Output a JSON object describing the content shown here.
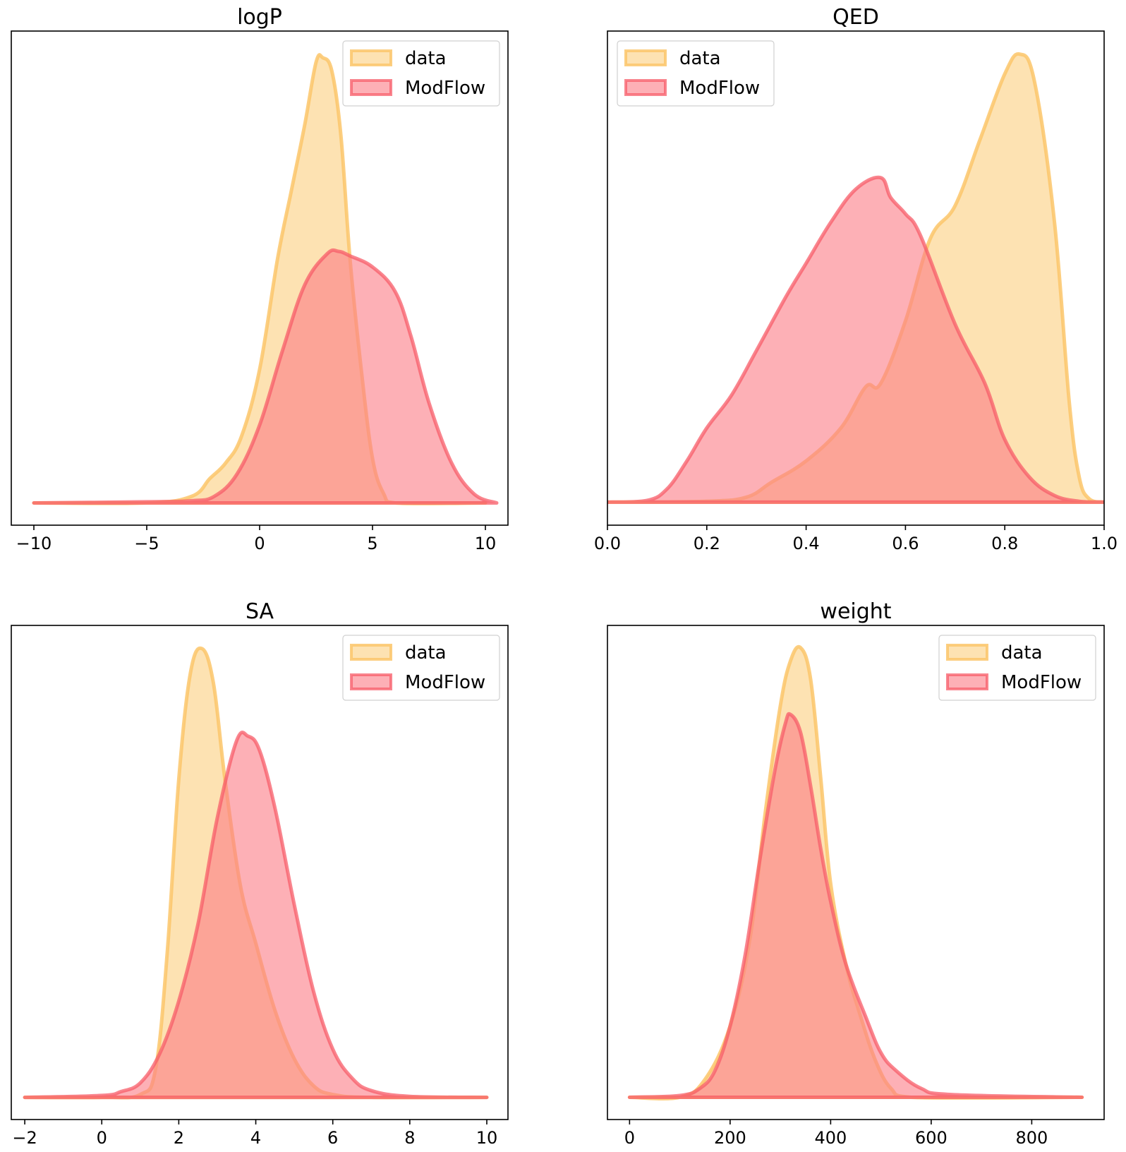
{
  "colors": {
    "data_fill": "#fccf7f",
    "data_line": "#fbc56a",
    "model_fill": "#fb7b85",
    "model_line": "#f75c68",
    "axes": "#000000",
    "legend_border": "#d0d0d0"
  },
  "chart_data": [
    {
      "type": "area",
      "title": "logP",
      "xlim": [
        -11,
        11
      ],
      "ylim": [
        -0.01,
        0.212
      ],
      "xticks": [
        -10,
        -5,
        0,
        5,
        10
      ],
      "xticklabels": [
        "−10",
        "−5",
        "0",
        "5",
        "10"
      ],
      "legend_position": "top-right",
      "legend_labels": [
        "data",
        "ModFlow"
      ],
      "series": [
        {
          "name": "data",
          "x": [
            -10,
            -5,
            -3,
            -2.2,
            -1.5,
            -0.8,
            0,
            0.8,
            1.4,
            2,
            2.5,
            2.8,
            3.2,
            3.6,
            4,
            4.5,
            5,
            5.5,
            6,
            10
          ],
          "y": [
            0,
            0,
            0.003,
            0.011,
            0.018,
            0.03,
            0.06,
            0.11,
            0.14,
            0.17,
            0.198,
            0.2,
            0.194,
            0.165,
            0.11,
            0.06,
            0.02,
            0.004,
            0,
            0
          ]
        },
        {
          "name": "ModFlow",
          "x": [
            -10,
            -5,
            -3,
            -2,
            -1,
            0,
            1,
            2,
            3,
            3.5,
            4,
            5,
            6,
            6.7,
            7.5,
            8.5,
            9.5,
            10.5
          ],
          "y": [
            0,
            0.0005,
            0.001,
            0.003,
            0.013,
            0.035,
            0.068,
            0.098,
            0.112,
            0.113,
            0.111,
            0.106,
            0.095,
            0.075,
            0.045,
            0.018,
            0.004,
            0
          ]
        }
      ]
    },
    {
      "type": "area",
      "title": "QED",
      "xlim": [
        0.0,
        1.0
      ],
      "ylim": [
        -0.14,
        2.86
      ],
      "xticks": [
        0.0,
        0.2,
        0.4,
        0.6,
        0.8,
        1.0
      ],
      "xticklabels": [
        "0.0",
        "0.2",
        "0.4",
        "0.6",
        "0.8",
        "1.0"
      ],
      "legend_position": "top-left",
      "legend_labels": [
        "data",
        "ModFlow"
      ],
      "series": [
        {
          "name": "data",
          "x": [
            0.0,
            0.2,
            0.28,
            0.33,
            0.4,
            0.47,
            0.52,
            0.55,
            0.6,
            0.65,
            0.7,
            0.75,
            0.8,
            0.83,
            0.86,
            0.9,
            0.93,
            0.95,
            0.97,
            1.0
          ],
          "y": [
            0,
            0.005,
            0.03,
            0.12,
            0.25,
            0.45,
            0.7,
            0.72,
            1.1,
            1.6,
            1.8,
            2.2,
            2.6,
            2.72,
            2.55,
            1.7,
            0.6,
            0.15,
            0.02,
            0
          ]
        },
        {
          "name": "ModFlow",
          "x": [
            0.0,
            0.08,
            0.12,
            0.16,
            0.2,
            0.25,
            0.3,
            0.36,
            0.4,
            0.45,
            0.5,
            0.55,
            0.57,
            0.6,
            0.63,
            0.7,
            0.76,
            0.8,
            0.85,
            0.9,
            0.95,
            1.0
          ],
          "y": [
            0,
            0.01,
            0.08,
            0.25,
            0.45,
            0.65,
            0.92,
            1.25,
            1.45,
            1.7,
            1.9,
            1.97,
            1.85,
            1.75,
            1.62,
            1.08,
            0.72,
            0.38,
            0.15,
            0.04,
            0.005,
            0
          ]
        }
      ]
    },
    {
      "type": "area",
      "title": "SA",
      "xlim": [
        -2.35,
        10.55
      ],
      "ylim": [
        -0.023,
        0.49
      ],
      "xticks": [
        -2,
        0,
        2,
        4,
        6,
        8,
        10
      ],
      "xticklabels": [
        "−2",
        "0",
        "2",
        "4",
        "6",
        "8",
        "10"
      ],
      "legend_position": "top-right",
      "legend_labels": [
        "data",
        "ModFlow"
      ],
      "series": [
        {
          "name": "data",
          "x": [
            -2,
            0,
            1,
            1.4,
            1.7,
            2,
            2.3,
            2.6,
            2.9,
            3.2,
            3.6,
            4,
            4.5,
            5,
            5.5,
            6,
            7,
            10
          ],
          "y": [
            0,
            0,
            0.003,
            0.03,
            0.15,
            0.33,
            0.44,
            0.466,
            0.43,
            0.33,
            0.22,
            0.16,
            0.09,
            0.04,
            0.012,
            0.003,
            0,
            0
          ]
        },
        {
          "name": "ModFlow",
          "x": [
            -2,
            0,
            0.5,
            1,
            1.5,
            2,
            2.5,
            3,
            3.5,
            3.8,
            4.1,
            4.5,
            5,
            5.5,
            6,
            6.5,
            7,
            8,
            10
          ],
          "y": [
            0,
            0.002,
            0.006,
            0.015,
            0.045,
            0.1,
            0.18,
            0.29,
            0.37,
            0.375,
            0.36,
            0.3,
            0.2,
            0.11,
            0.05,
            0.02,
            0.007,
            0.001,
            0
          ]
        }
      ]
    },
    {
      "type": "area",
      "title": "weight",
      "xlim": [
        -44,
        944
      ],
      "ylim": [
        -0.00025,
        0.0053
      ],
      "xticks": [
        0,
        200,
        400,
        600,
        800
      ],
      "xticklabels": [
        "0",
        "200",
        "400",
        "600",
        "800"
      ],
      "legend_position": "top-right",
      "legend_labels": [
        "data",
        "ModFlow"
      ],
      "series": [
        {
          "name": "data",
          "x": [
            0,
            100,
            150,
            200,
            240,
            270,
            300,
            320,
            340,
            360,
            380,
            400,
            430,
            460,
            490,
            520,
            560,
            900
          ],
          "y": [
            0,
            0,
            0.0002,
            0.0008,
            0.0018,
            0.0032,
            0.0044,
            0.0049,
            0.00505,
            0.0047,
            0.0036,
            0.0024,
            0.0015,
            0.0009,
            0.0004,
            0.0001,
            0,
            0
          ]
        },
        {
          "name": "ModFlow",
          "x": [
            0,
            100,
            140,
            170,
            200,
            230,
            260,
            290,
            310,
            320,
            340,
            360,
            380,
            400,
            430,
            470,
            500,
            530,
            580,
            640,
            900
          ],
          "y": [
            0,
            2e-05,
            0.0001,
            0.0003,
            0.0008,
            0.0016,
            0.0027,
            0.0037,
            0.0042,
            0.0043,
            0.0041,
            0.0035,
            0.0028,
            0.0022,
            0.0015,
            0.0009,
            0.0005,
            0.0003,
            0.0001,
            3e-05,
            0
          ]
        }
      ]
    }
  ]
}
